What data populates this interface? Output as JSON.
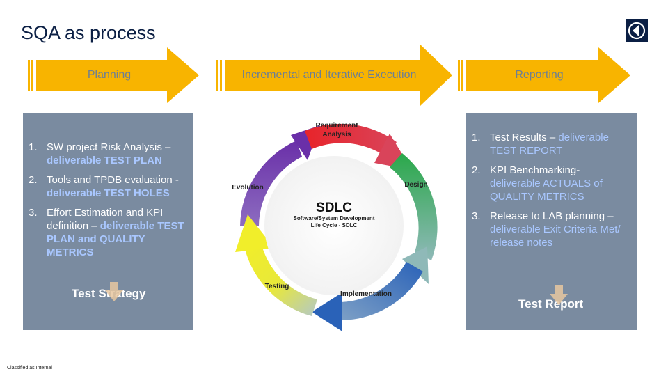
{
  "title": "SQA as process",
  "phases": [
    {
      "label": "Planning"
    },
    {
      "label": "Incremental and Iterative Execution"
    },
    {
      "label": "Reporting"
    }
  ],
  "planning": {
    "items": [
      {
        "num": "1.",
        "text": "SW project Risk Analysis – ",
        "highlight": "deliverable TEST PLAN"
      },
      {
        "num": "2.",
        "text": "Tools and TPDB evaluation - ",
        "highlight": "deliverable TEST HOLES"
      },
      {
        "num": "3.",
        "text": "Effort Estimation and KPI definition – ",
        "highlight": "deliverable TEST PLAN and QUALITY METRICS"
      }
    ],
    "footer": "Test Strategy"
  },
  "reporting": {
    "items": [
      {
        "num": "1.",
        "text": "Test Results – ",
        "highlight": "deliverable TEST REPORT"
      },
      {
        "num": "2.",
        "text": "KPI Benchmarking- ",
        "highlight": "deliverable ACTUALS of QUALITY METRICS"
      },
      {
        "num": "3.",
        "text": "Release to LAB planning – ",
        "highlight": "deliverable Exit Criteria Met/ release notes"
      }
    ],
    "footer": "Test Report"
  },
  "sdlc": {
    "center_title": "SDLC",
    "center_subtitle_1": "Software/System Development",
    "center_subtitle_2": "Life Cycle - SDLC",
    "stage_requirement_1": "Requirement",
    "stage_requirement_2": "Analysis",
    "stage_design": "Design",
    "stage_implementation": "Implementation",
    "stage_testing": "Testing",
    "stage_evolution": "Evolution"
  },
  "footer_note": "Classified as Internal",
  "colors": {
    "title": "#0b1f44",
    "arrow_fill": "#f8b400",
    "panel_bg": "#7a8ba0",
    "highlight": "#a9c7ff"
  },
  "icons": {
    "logo": "brand-logo-icon",
    "down_arrow": "down-arrow-icon"
  }
}
